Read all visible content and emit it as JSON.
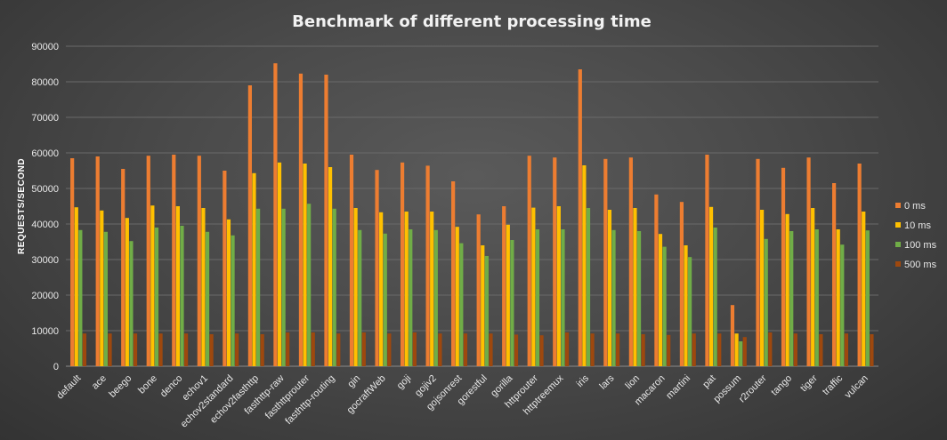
{
  "chart_data": {
    "type": "bar",
    "title": "Benchmark  of  different  processing  time",
    "xlabel": "",
    "ylabel": "REQUESTS/SECOND",
    "ylim": [
      0,
      90000
    ],
    "yticks": [
      0,
      10000,
      20000,
      30000,
      40000,
      50000,
      60000,
      70000,
      80000,
      90000
    ],
    "grid": true,
    "legend_position": "right",
    "categories": [
      "default",
      "ace",
      "beego",
      "bone",
      "denco",
      "echov1",
      "echov2standard",
      "echov2fasthttp",
      "fasthttp-raw",
      "fasthttprouter",
      "fasthttp-routing",
      "gin",
      "gocraftWeb",
      "goji",
      "gojiv2",
      "gojsonrest",
      "gorestful",
      "gorilla",
      "httprouter",
      "httptreemux",
      "iris",
      "lars",
      "lion",
      "macaron",
      "martini",
      "pat",
      "possum",
      "r2router",
      "tango",
      "tiger",
      "traffic",
      "vulcan"
    ],
    "series": [
      {
        "name": "0 ms",
        "color": "#ed7d31",
        "values": [
          58500,
          59000,
          55500,
          59200,
          59500,
          59200,
          55000,
          79000,
          85200,
          82300,
          82000,
          59500,
          55200,
          57300,
          56400,
          52000,
          42700,
          45000,
          59200,
          58700,
          83500,
          58300,
          58700,
          48300,
          46200,
          59500,
          17200,
          58300,
          55800,
          58700,
          51500,
          57000
        ]
      },
      {
        "name": "10 ms",
        "color": "#ffc000",
        "values": [
          44700,
          43800,
          41700,
          45200,
          45000,
          44500,
          41300,
          54300,
          57300,
          57000,
          56000,
          44500,
          43300,
          43500,
          43500,
          39200,
          34000,
          39800,
          44600,
          45000,
          56500,
          44000,
          44500,
          37200,
          34000,
          44800,
          9200,
          44000,
          42800,
          44500,
          38500,
          43500
        ]
      },
      {
        "name": "100 ms",
        "color": "#70ad47",
        "values": [
          38300,
          37800,
          35200,
          39000,
          39500,
          37800,
          36800,
          44300,
          44300,
          45700,
          44300,
          38300,
          37300,
          38500,
          38300,
          34600,
          31000,
          35500,
          38500,
          38500,
          44500,
          38300,
          38000,
          33600,
          30700,
          39000,
          7000,
          35800,
          38000,
          38500,
          34200,
          38200
        ]
      },
      {
        "name": "500 ms",
        "color": "#9e480e",
        "values": [
          9200,
          9200,
          9200,
          9200,
          9200,
          9000,
          9200,
          9000,
          9500,
          9500,
          9200,
          9500,
          9200,
          9500,
          9200,
          9200,
          9200,
          8900,
          8700,
          9500,
          9200,
          9200,
          9000,
          8800,
          9200,
          9200,
          8200,
          9500,
          9200,
          9000,
          9200,
          9000
        ]
      }
    ]
  }
}
